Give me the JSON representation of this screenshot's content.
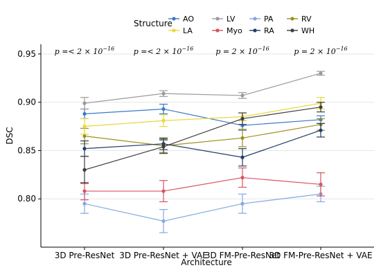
{
  "chart_data": {
    "type": "line",
    "legend_title": "Structure",
    "legend_position": "top",
    "xlabel": "Architecture",
    "ylabel": "DSC",
    "categories": [
      "3D Pre-ResNet",
      "3D Pre-ResNet + VAE",
      "3D FM-Pre-ResNet",
      "3D FM-Pre-ResNet + VAE"
    ],
    "ylim": [
      0.75,
      0.96
    ],
    "yticks": [
      "0.80",
      "0.85",
      "0.90",
      "0.95"
    ],
    "annotations": [
      {
        "label": "p =< 2 × 10",
        "exp": "−16"
      },
      {
        "label": "p =< 2 × 10",
        "exp": "−16"
      },
      {
        "label": "p = 2 × 10",
        "exp": "−16"
      },
      {
        "label": "p = 2 × 10",
        "exp": "−16"
      }
    ],
    "series": [
      {
        "name": "AO",
        "color": "#3a78c9",
        "values": [
          0.888,
          0.893,
          0.876,
          0.882
        ],
        "err": [
          0.005,
          0.005,
          0.005,
          0.004
        ]
      },
      {
        "name": "LV",
        "color": "#9a9a9a",
        "values": [
          0.899,
          0.909,
          0.907,
          0.93
        ],
        "err": [
          0.006,
          0.003,
          0.003,
          0.002
        ]
      },
      {
        "name": "PA",
        "color": "#82a8e3",
        "values": [
          0.795,
          0.777,
          0.795,
          0.805
        ],
        "err": [
          0.01,
          0.012,
          0.01,
          0.008
        ]
      },
      {
        "name": "RV",
        "color": "#9e8f1d",
        "values": [
          0.865,
          0.855,
          0.863,
          0.877
        ],
        "err": [
          0.008,
          0.007,
          0.009,
          0.006
        ]
      },
      {
        "name": "LA",
        "color": "#e8d93a",
        "values": [
          0.875,
          0.881,
          0.885,
          0.899
        ],
        "err": [
          0.008,
          0.006,
          0.004,
          0.006
        ]
      },
      {
        "name": "Myo",
        "color": "#d9525e",
        "values": [
          0.808,
          0.808,
          0.822,
          0.815
        ],
        "err": [
          0.009,
          0.011,
          0.01,
          0.012
        ]
      },
      {
        "name": "RA",
        "color": "#1e3d66",
        "values": [
          0.852,
          0.857,
          0.843,
          0.871
        ],
        "err": [
          0.008,
          0.006,
          0.009,
          0.007
        ]
      },
      {
        "name": "WH",
        "color": "#3d3d3d",
        "values": [
          0.83,
          0.854,
          0.883,
          0.895
        ],
        "err": [
          0.014,
          0.007,
          0.006,
          0.005
        ]
      }
    ]
  }
}
